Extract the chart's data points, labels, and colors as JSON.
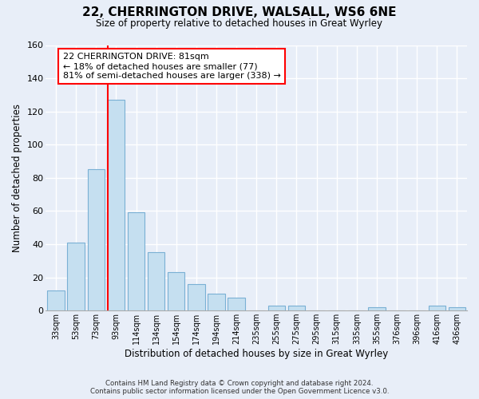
{
  "title": "22, CHERRINGTON DRIVE, WALSALL, WS6 6NE",
  "subtitle": "Size of property relative to detached houses in Great Wyrley",
  "xlabel": "Distribution of detached houses by size in Great Wyrley",
  "ylabel": "Number of detached properties",
  "footer_line1": "Contains HM Land Registry data © Crown copyright and database right 2024.",
  "footer_line2": "Contains public sector information licensed under the Open Government Licence v3.0.",
  "bar_labels": [
    "33sqm",
    "53sqm",
    "73sqm",
    "93sqm",
    "114sqm",
    "134sqm",
    "154sqm",
    "174sqm",
    "194sqm",
    "214sqm",
    "235sqm",
    "255sqm",
    "275sqm",
    "295sqm",
    "315sqm",
    "335sqm",
    "355sqm",
    "376sqm",
    "396sqm",
    "416sqm",
    "436sqm"
  ],
  "bar_values": [
    12,
    41,
    85,
    127,
    59,
    35,
    23,
    16,
    10,
    8,
    0,
    3,
    3,
    0,
    0,
    0,
    2,
    0,
    0,
    3,
    2
  ],
  "bar_color": "#c5dff0",
  "bar_edge_color": "#7ab0d4",
  "ylim": [
    0,
    160
  ],
  "yticks": [
    0,
    20,
    40,
    60,
    80,
    100,
    120,
    140,
    160
  ],
  "property_line_label": "22 CHERRINGTON DRIVE: 81sqm",
  "annotation_line1": "← 18% of detached houses are smaller (77)",
  "annotation_line2": "81% of semi-detached houses are larger (338) →",
  "bg_color": "#e8eef8",
  "grid_color": "#ffffff"
}
